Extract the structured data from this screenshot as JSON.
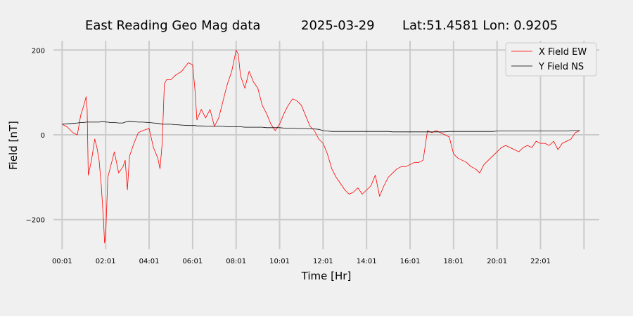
{
  "chart_data": {
    "type": "line",
    "title_parts": [
      "East Reading Geo Mag data",
      "2025-03-29",
      "Lat:51.4581  Lon: 0.9205"
    ],
    "xlabel": "Time  [Hr]",
    "ylabel": "Field  [nT]",
    "x_tick_labels": [
      "00:01",
      "02:01",
      "04:01",
      "06:01",
      "08:01",
      "10:01",
      "12:01",
      "14:01",
      "16:01",
      "18:01",
      "20:01",
      "22:01"
    ],
    "y_ticks": [
      -200,
      0,
      200
    ],
    "xlim_hours": [
      -0.4,
      24.7
    ],
    "ylim": [
      -270,
      222
    ],
    "grid": true,
    "legend_position": "top-right",
    "x_hours": [
      0,
      0.25,
      0.5,
      0.7,
      0.85,
      1.0,
      1.1,
      1.15,
      1.2,
      1.35,
      1.5,
      1.6,
      1.7,
      1.8,
      1.9,
      1.95,
      2.0,
      2.1,
      2.2,
      2.4,
      2.6,
      2.8,
      2.9,
      3.0,
      3.1,
      3.3,
      3.5,
      3.7,
      4.0,
      4.2,
      4.4,
      4.5,
      4.6,
      4.7,
      4.8,
      5.0,
      5.2,
      5.5,
      5.8,
      6.0,
      6.1,
      6.2,
      6.4,
      6.6,
      6.8,
      7.0,
      7.2,
      7.4,
      7.6,
      7.8,
      8.0,
      8.1,
      8.2,
      8.4,
      8.6,
      8.8,
      9.0,
      9.2,
      9.4,
      9.6,
      9.8,
      10.0,
      10.2,
      10.4,
      10.6,
      10.8,
      11.0,
      11.2,
      11.4,
      11.6,
      11.8,
      12.0,
      12.2,
      12.4,
      12.6,
      12.8,
      13.0,
      13.2,
      13.4,
      13.6,
      13.8,
      14.0,
      14.2,
      14.4,
      14.6,
      14.8,
      15.0,
      15.2,
      15.4,
      15.6,
      15.8,
      16.0,
      16.2,
      16.4,
      16.6,
      16.8,
      17.0,
      17.2,
      17.4,
      17.6,
      17.8,
      18.0,
      18.2,
      18.4,
      18.6,
      18.8,
      19.0,
      19.2,
      19.4,
      19.6,
      19.8,
      20.0,
      20.2,
      20.4,
      20.6,
      20.8,
      21.0,
      21.2,
      21.4,
      21.6,
      21.8,
      22.0,
      22.2,
      22.4,
      22.6,
      22.8,
      23.0,
      23.2,
      23.4,
      23.6,
      23.8,
      24.0
    ],
    "series": [
      {
        "name": "X Field EW",
        "color": "#ff0000",
        "values": [
          25,
          18,
          5,
          0,
          45,
          70,
          90,
          60,
          -95,
          -60,
          -10,
          -30,
          -60,
          -120,
          -200,
          -255,
          -240,
          -100,
          -80,
          -40,
          -90,
          -75,
          -60,
          -130,
          -50,
          -20,
          5,
          10,
          15,
          -30,
          -55,
          -80,
          -20,
          120,
          130,
          130,
          140,
          150,
          170,
          165,
          110,
          35,
          60,
          40,
          60,
          20,
          40,
          80,
          120,
          150,
          200,
          190,
          140,
          110,
          150,
          125,
          110,
          70,
          50,
          25,
          10,
          25,
          50,
          70,
          85,
          80,
          70,
          45,
          20,
          10,
          -10,
          -20,
          -45,
          -80,
          -100,
          -115,
          -130,
          -140,
          -135,
          -125,
          -140,
          -130,
          -120,
          -95,
          -145,
          -120,
          -100,
          -90,
          -80,
          -75,
          -75,
          -70,
          -65,
          -65,
          -60,
          10,
          5,
          10,
          5,
          0,
          -5,
          -45,
          -55,
          -60,
          -65,
          -75,
          -80,
          -90,
          -70,
          -60,
          -50,
          -40,
          -30,
          -25,
          -30,
          -35,
          -40,
          -30,
          -25,
          -30,
          -15,
          -20,
          -20,
          -25,
          -15,
          -35,
          -20,
          -15,
          -10,
          5,
          10
        ]
      },
      {
        "name": "Y Field NS",
        "color": "#000000",
        "values": [
          25,
          26,
          27,
          28,
          29,
          29,
          30,
          30,
          30,
          30,
          30,
          30,
          30,
          31,
          31,
          31,
          30,
          30,
          29,
          29,
          28,
          28,
          30,
          31,
          32,
          31,
          30,
          30,
          29,
          28,
          27,
          26,
          25,
          25,
          25,
          25,
          24,
          23,
          22,
          22,
          22,
          21,
          21,
          20,
          20,
          20,
          20,
          20,
          19,
          19,
          19,
          19,
          19,
          18,
          18,
          18,
          18,
          18,
          17,
          17,
          17,
          17,
          16,
          16,
          16,
          15,
          15,
          15,
          14,
          14,
          13,
          10,
          9,
          8,
          8,
          8,
          8,
          8,
          8,
          8,
          8,
          8,
          8,
          8,
          8,
          8,
          8,
          7,
          7,
          7,
          7,
          7,
          7,
          7,
          7,
          7,
          7,
          7,
          7,
          7,
          8,
          8,
          8,
          8,
          8,
          8,
          8,
          8,
          8,
          8,
          8,
          9,
          9,
          9,
          9,
          9,
          9,
          9,
          9,
          9,
          9,
          9,
          9,
          9,
          9,
          9,
          9,
          9,
          10,
          10,
          10
        ]
      }
    ]
  }
}
